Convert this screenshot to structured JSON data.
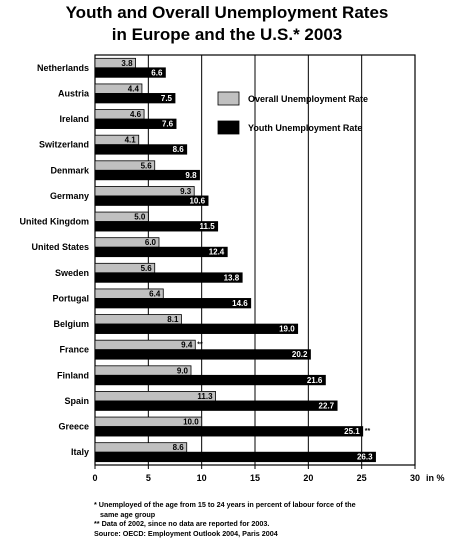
{
  "chart_data": {
    "type": "bar",
    "orientation": "horizontal",
    "title_lines": [
      "Youth and Overall Unemployment Rates",
      "in Europe and the U.S.* 2003"
    ],
    "categories": [
      "Netherlands",
      "Austria",
      "Ireland",
      "Switzerland",
      "Denmark",
      "Germany",
      "United Kingdom",
      "United States",
      "Sweden",
      "Portugal",
      "Belgium",
      "France",
      "Finland",
      "Spain",
      "Greece",
      "Italy"
    ],
    "series": [
      {
        "name": "Overall  Unemployment Rate",
        "color": "#c0c0c0",
        "values": [
          3.8,
          4.4,
          4.6,
          4.1,
          5.6,
          9.3,
          5.0,
          6.0,
          5.6,
          6.4,
          8.1,
          9.4,
          9.0,
          11.3,
          10.0,
          8.6
        ],
        "labels": [
          "3.8",
          "4.4",
          "4.6",
          "4.1",
          "5.6",
          "9.3",
          "5.0",
          "6.0",
          "5.6",
          "6.4",
          "8.1",
          "9.4",
          "9.0",
          "11.3",
          "10.0",
          "8.6"
        ]
      },
      {
        "name": "Youth Unemployment Rate",
        "color": "#000000",
        "values": [
          6.6,
          7.5,
          7.6,
          8.6,
          9.8,
          10.6,
          11.5,
          12.4,
          13.8,
          14.6,
          19.0,
          20.2,
          21.6,
          22.7,
          25.1,
          26.3
        ],
        "labels": [
          "6.6",
          "7.5",
          "7.6",
          "8.6",
          "9.8",
          "10.6",
          "11.5",
          "12.4",
          "13.8",
          "14.6",
          "19.0",
          "20.2",
          "21.6",
          "22.7",
          "25.1",
          "26.3"
        ]
      }
    ],
    "annotations": [
      {
        "category": "France",
        "series": 0,
        "text": "**"
      },
      {
        "category": "Greece",
        "series": 1,
        "text": "**"
      }
    ],
    "x_ticks": [
      "0",
      "5",
      "10",
      "15",
      "20",
      "25",
      "30"
    ],
    "x_unit": "in %",
    "xlim": [
      0,
      30
    ],
    "grid": "vertical lines",
    "legend_position": "top-right"
  },
  "footnotes": [
    "* Unemployed of the age from 15 to 24 years in percent of labour force of the",
    "same age group",
    "** Data of 2002, since no data are reported for 2003.",
    "Source: OECD: Employment Outlook 2004, Paris 2004"
  ]
}
